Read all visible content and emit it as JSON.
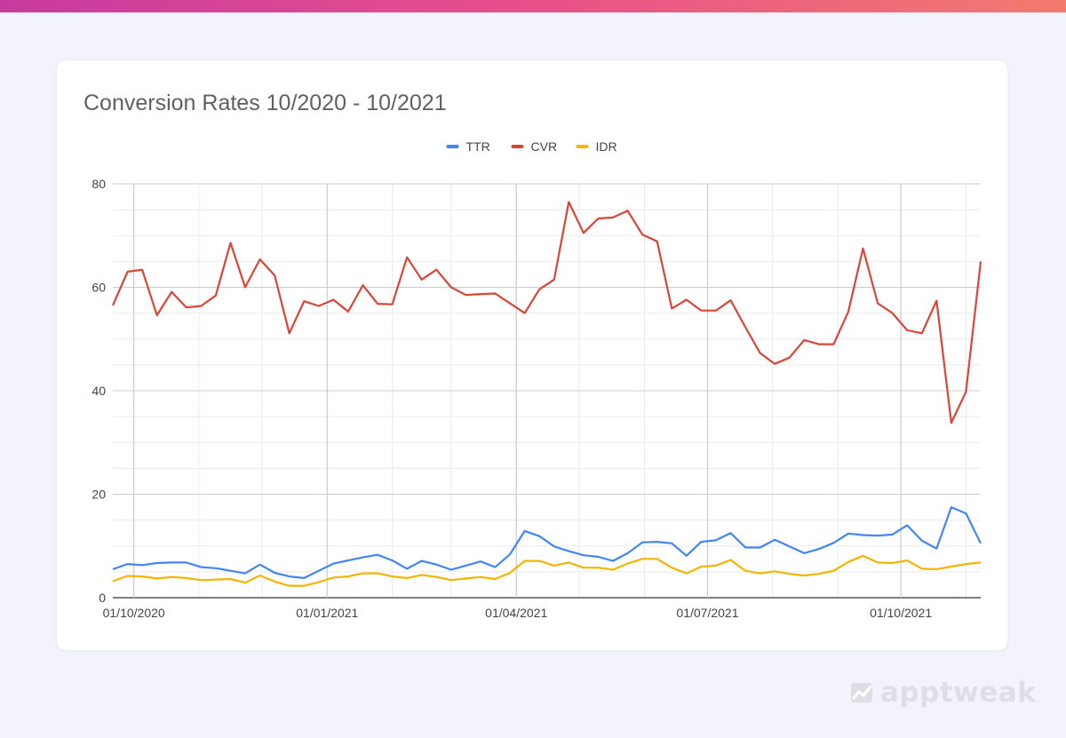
{
  "brand": {
    "name": "apptweak"
  },
  "chart_data": {
    "type": "line",
    "title": "Conversion Rates 10/2020 - 10/2021",
    "xlabel": "",
    "ylabel": "",
    "ylim": [
      0,
      80
    ],
    "yticks": [
      0,
      20,
      40,
      60,
      80
    ],
    "grid": true,
    "legend": "top-center",
    "x_tick_labels": [
      "01/10/2020",
      "01/01/2021",
      "01/04/2021",
      "01/07/2021",
      "01/10/2021"
    ],
    "x_tick_dates": [
      "2020-10-01",
      "2021-01-01",
      "2021-04-01",
      "2021-07-01",
      "2021-10-01"
    ],
    "x": [
      "2020-09-21",
      "2020-09-28",
      "2020-10-05",
      "2020-10-12",
      "2020-10-19",
      "2020-10-26",
      "2020-11-02",
      "2020-11-09",
      "2020-11-16",
      "2020-11-23",
      "2020-11-30",
      "2020-12-07",
      "2020-12-14",
      "2020-12-21",
      "2020-12-28",
      "2021-01-04",
      "2021-01-11",
      "2021-01-18",
      "2021-01-25",
      "2021-02-01",
      "2021-02-08",
      "2021-02-15",
      "2021-02-22",
      "2021-03-01",
      "2021-03-08",
      "2021-03-15",
      "2021-03-22",
      "2021-03-29",
      "2021-04-05",
      "2021-04-12",
      "2021-04-19",
      "2021-04-26",
      "2021-05-03",
      "2021-05-10",
      "2021-05-17",
      "2021-05-24",
      "2021-05-31",
      "2021-06-07",
      "2021-06-14",
      "2021-06-21",
      "2021-06-28",
      "2021-07-05",
      "2021-07-12",
      "2021-07-19",
      "2021-07-26",
      "2021-08-02",
      "2021-08-09",
      "2021-08-16",
      "2021-08-23",
      "2021-08-30",
      "2021-09-06",
      "2021-09-13",
      "2021-09-20",
      "2021-09-27",
      "2021-10-04",
      "2021-10-11",
      "2021-10-18",
      "2021-10-25",
      "2021-11-01",
      "2021-11-08"
    ],
    "series": [
      {
        "name": "TTR",
        "color": "#4285f4",
        "values": [
          5.5,
          6.5,
          6.3,
          6.7,
          6.8,
          6.8,
          5.9,
          5.7,
          5.2,
          4.7,
          6.4,
          4.8,
          4.1,
          3.8,
          5.2,
          6.6,
          7.2,
          7.8,
          8.3,
          7.2,
          5.6,
          7.1,
          6.4,
          5.4,
          6.2,
          7.0,
          5.9,
          8.4,
          12.9,
          11.9,
          9.9,
          9.0,
          8.2,
          7.9,
          7.1,
          8.6,
          10.7,
          10.8,
          10.5,
          8.1,
          10.8,
          11.1,
          12.5,
          9.7,
          9.7,
          11.2,
          9.9,
          8.6,
          9.4,
          10.6,
          12.4,
          12.1,
          12.0,
          12.2,
          14.0,
          11.0,
          9.5,
          17.5,
          16.3,
          10.5
        ]
      },
      {
        "name": "CVR",
        "color": "#db4437",
        "values": [
          56.5,
          63.0,
          63.4,
          54.6,
          59.1,
          56.1,
          56.4,
          58.4,
          68.6,
          60.0,
          65.4,
          62.3,
          51.1,
          57.3,
          56.4,
          57.6,
          55.3,
          60.4,
          56.8,
          56.7,
          65.8,
          61.5,
          63.4,
          60.0,
          58.5,
          58.7,
          58.8,
          56.9,
          55.0,
          59.6,
          61.5,
          76.5,
          70.5,
          73.3,
          73.5,
          74.8,
          70.2,
          68.9,
          55.9,
          57.6,
          55.5,
          55.5,
          57.5,
          52.3,
          47.3,
          45.2,
          46.4,
          49.8,
          49.0,
          49.0,
          55.3,
          67.5,
          56.9,
          55.0,
          51.7,
          51.1,
          57.4,
          33.8,
          39.8,
          65.0
        ]
      },
      {
        "name": "IDR",
        "color": "#f4b400",
        "values": [
          3.2,
          4.2,
          4.1,
          3.7,
          4.0,
          3.8,
          3.4,
          3.5,
          3.6,
          2.9,
          4.3,
          3.1,
          2.3,
          2.3,
          3.0,
          3.9,
          4.1,
          4.7,
          4.7,
          4.1,
          3.8,
          4.4,
          4.0,
          3.4,
          3.7,
          4.0,
          3.6,
          4.8,
          7.1,
          7.1,
          6.2,
          6.8,
          5.8,
          5.8,
          5.4,
          6.6,
          7.5,
          7.5,
          5.8,
          4.7,
          6.0,
          6.2,
          7.3,
          5.2,
          4.7,
          5.1,
          4.6,
          4.3,
          4.6,
          5.2,
          6.9,
          8.1,
          6.8,
          6.7,
          7.2,
          5.6,
          5.5,
          6.0,
          6.5,
          6.8
        ]
      }
    ]
  }
}
